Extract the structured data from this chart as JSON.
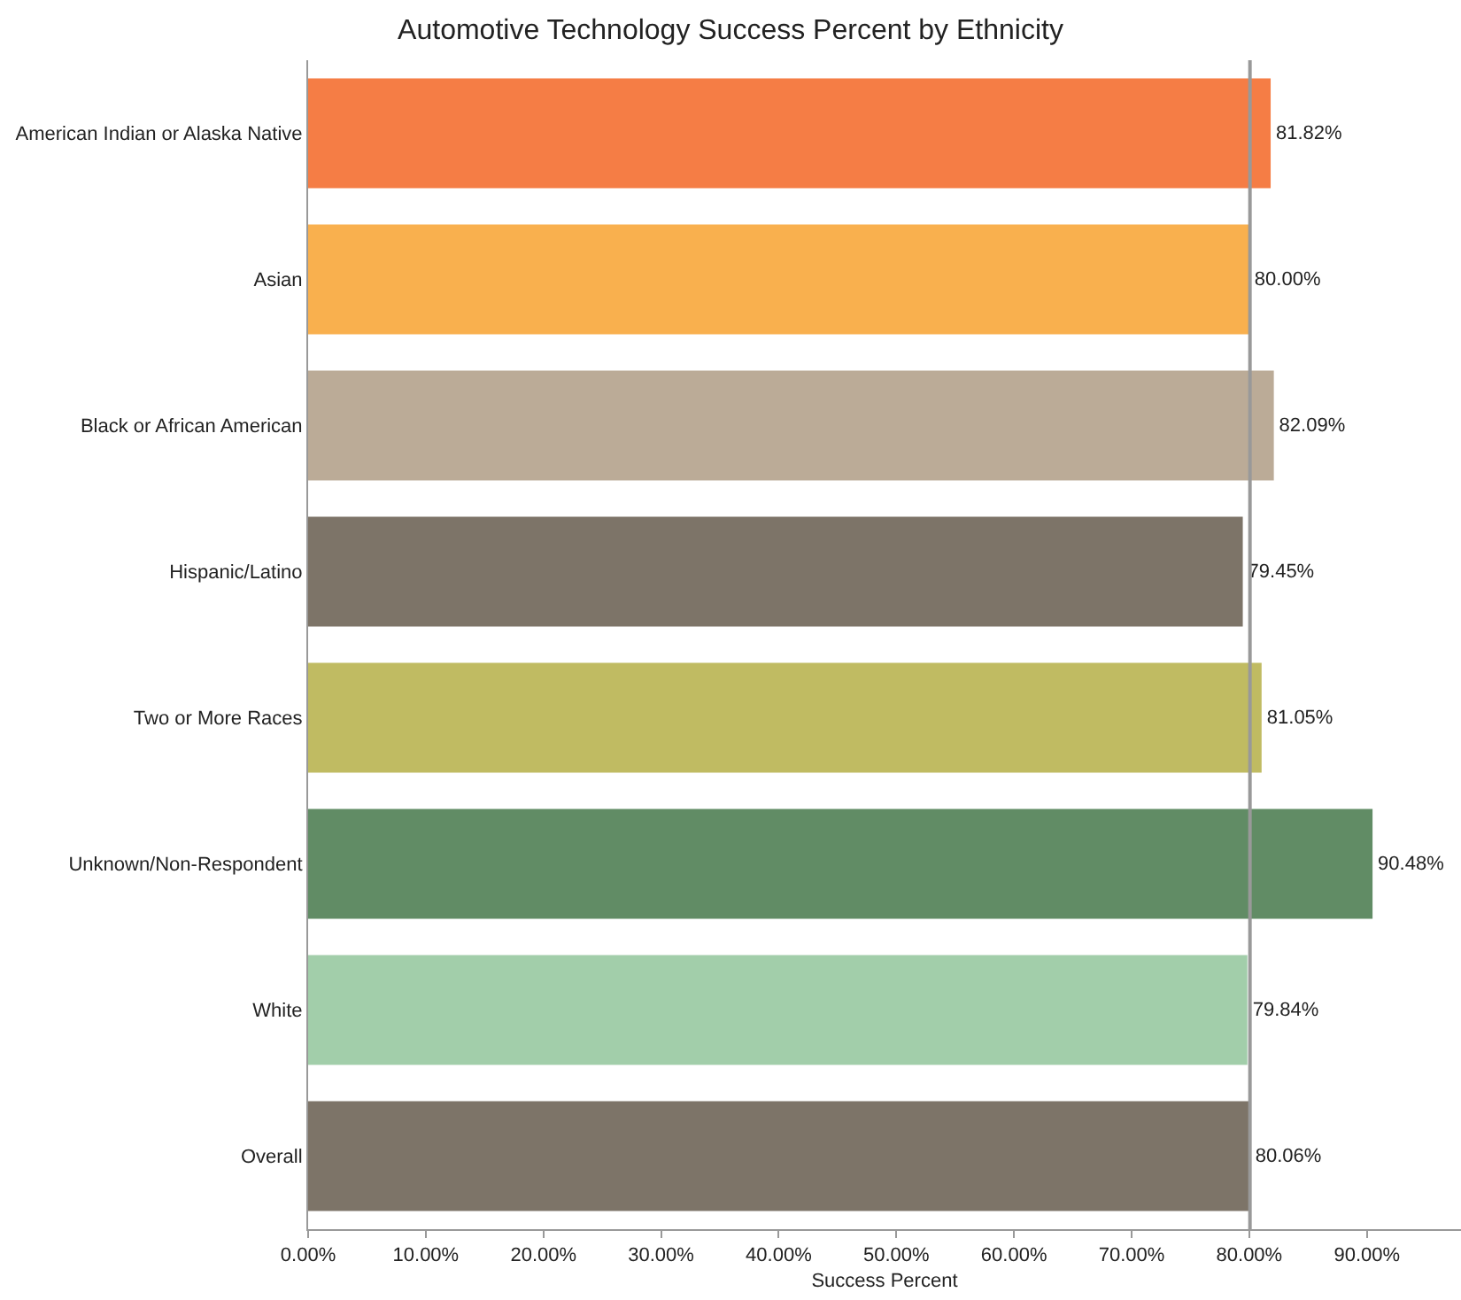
{
  "chart_data": {
    "type": "bar",
    "orientation": "horizontal",
    "title": "Automotive Technology Success Percent by Ethnicity",
    "xlabel": "Success Percent",
    "categories": [
      "American Indian or Alaska Native",
      "Asian",
      "Black or African American",
      "Hispanic/Latino",
      "Two or More Races",
      "Unknown/Non-Respondent",
      "White",
      "Overall"
    ],
    "values": [
      81.82,
      80.0,
      82.09,
      79.45,
      81.05,
      90.48,
      79.84,
      80.06
    ],
    "value_labels": [
      "81.82%",
      "80.00%",
      "82.09%",
      "79.45%",
      "81.05%",
      "90.48%",
      "79.84%",
      "80.06%"
    ],
    "colors": [
      "#f57d45",
      "#f9b04e",
      "#bbab97",
      "#7d7468",
      "#c0bb62",
      "#618c65",
      "#a2ceaa",
      "#7d7468"
    ],
    "xlim": [
      0,
      98
    ],
    "xticks": [
      {
        "value": 0,
        "label": "0.00%"
      },
      {
        "value": 10,
        "label": "10.00%"
      },
      {
        "value": 20,
        "label": "20.00%"
      },
      {
        "value": 30,
        "label": "30.00%"
      },
      {
        "value": 40,
        "label": "40.00%"
      },
      {
        "value": 50,
        "label": "50.00%"
      },
      {
        "value": 60,
        "label": "60.00%"
      },
      {
        "value": 70,
        "label": "70.00%"
      },
      {
        "value": 80,
        "label": "80.00%"
      },
      {
        "value": 90,
        "label": "90.00%"
      }
    ],
    "ref_lines": [
      {
        "axis": "x",
        "value": 80.06,
        "color": "#999999"
      }
    ],
    "grid": false
  }
}
